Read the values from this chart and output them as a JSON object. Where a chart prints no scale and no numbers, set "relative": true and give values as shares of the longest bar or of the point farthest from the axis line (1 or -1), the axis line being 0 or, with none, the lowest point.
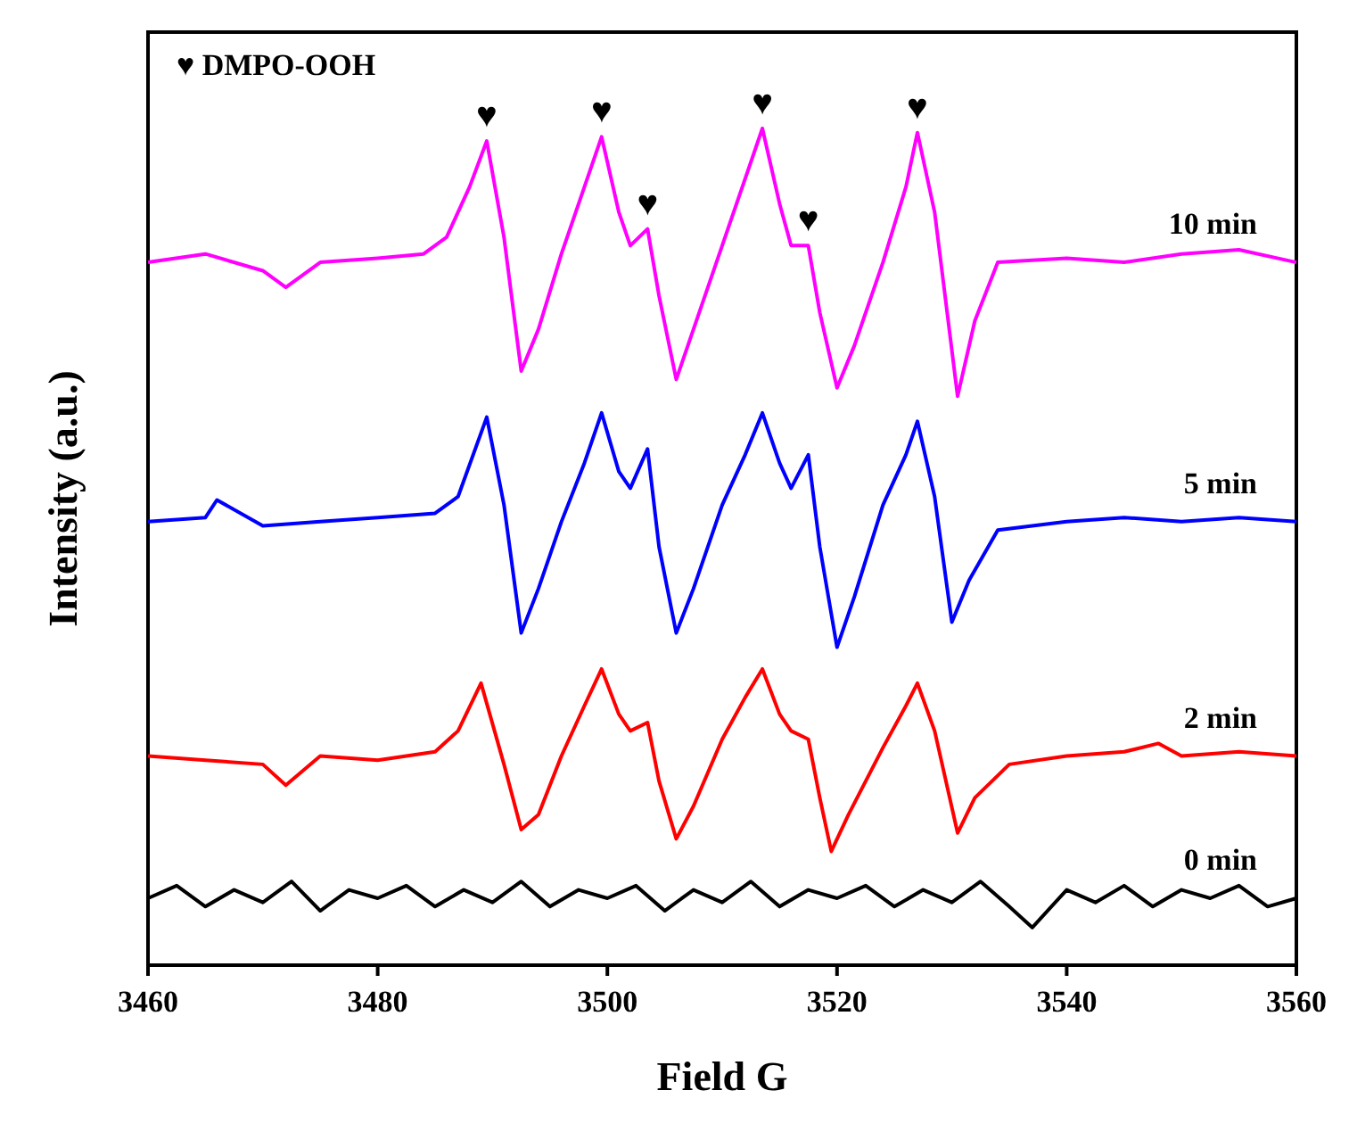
{
  "chart_data": {
    "type": "line",
    "xlabel": "Field G",
    "ylabel": "Intensity (a.u.)",
    "relative": true,
    "xlim": [
      3460,
      3560
    ],
    "xticks": [
      3460,
      3480,
      3500,
      3520,
      3540,
      3560
    ],
    "grid": false,
    "marker": "none",
    "line_style": "solid",
    "annotations": [
      "♥ DMPO-OOH",
      {
        "text": "♥",
        "x": 3489.5,
        "y": 0.985
      },
      {
        "text": "♥",
        "x": 3499.5,
        "y": 0.99
      },
      {
        "text": "♥",
        "x": 3503.5,
        "y": 0.88
      },
      {
        "text": "♥",
        "x": 3513.5,
        "y": 1.0
      },
      {
        "text": "♥",
        "x": 3517.5,
        "y": 0.86
      },
      {
        "text": "♥",
        "x": 3527,
        "y": 0.995
      }
    ],
    "series": [
      {
        "name": "10 min",
        "color": "#ff00ff",
        "x": [
          3460,
          3465,
          3470,
          3472,
          3475,
          3480,
          3484,
          3486,
          3488,
          3489.5,
          3491,
          3492.5,
          3494,
          3496,
          3498,
          3499.5,
          3501,
          3502,
          3503.5,
          3504.5,
          3506,
          3507.5,
          3510,
          3512,
          3513.5,
          3515,
          3516,
          3517.5,
          3518.5,
          3520,
          3521.5,
          3524,
          3526,
          3527,
          3528.5,
          3530.5,
          3532,
          3534,
          3540,
          3545,
          3550,
          3555,
          3560
        ],
        "values": [
          0.84,
          0.85,
          0.83,
          0.81,
          0.84,
          0.845,
          0.85,
          0.87,
          0.93,
          0.985,
          0.87,
          0.71,
          0.76,
          0.85,
          0.93,
          0.99,
          0.9,
          0.86,
          0.88,
          0.8,
          0.7,
          0.76,
          0.86,
          0.94,
          1.0,
          0.91,
          0.86,
          0.86,
          0.78,
          0.69,
          0.74,
          0.84,
          0.93,
          0.995,
          0.9,
          0.68,
          0.77,
          0.84,
          0.845,
          0.84,
          0.85,
          0.855,
          0.84
        ]
      },
      {
        "name": "5 min",
        "color": "#0000ff",
        "x": [
          3460,
          3465,
          3466,
          3470,
          3475,
          3480,
          3485,
          3487,
          3489.5,
          3491,
          3492.5,
          3494,
          3496,
          3498,
          3499.5,
          3501,
          3502,
          3503.5,
          3504.5,
          3506,
          3507.5,
          3510,
          3512,
          3513.5,
          3515,
          3516,
          3517.5,
          3518.5,
          3520,
          3521.5,
          3524,
          3526,
          3527,
          3528.5,
          3530,
          3531.5,
          3534,
          3540,
          3545,
          3550,
          3555,
          3560
        ],
        "values": [
          0.53,
          0.535,
          0.556,
          0.525,
          0.53,
          0.535,
          0.54,
          0.56,
          0.655,
          0.55,
          0.397,
          0.45,
          0.53,
          0.6,
          0.66,
          0.59,
          0.57,
          0.617,
          0.5,
          0.397,
          0.45,
          0.55,
          0.61,
          0.66,
          0.6,
          0.57,
          0.61,
          0.5,
          0.38,
          0.44,
          0.55,
          0.61,
          0.65,
          0.56,
          0.41,
          0.46,
          0.52,
          0.53,
          0.535,
          0.53,
          0.535,
          0.53
        ]
      },
      {
        "name": "2 min",
        "color": "#ff0000",
        "x": [
          3460,
          3465,
          3470,
          3472,
          3475,
          3480,
          3485,
          3487,
          3489,
          3491,
          3492.5,
          3494,
          3496,
          3498,
          3499.5,
          3501,
          3502,
          3503.5,
          3504.5,
          3506,
          3507.5,
          3510,
          3512,
          3513.5,
          3515,
          3516,
          3517.5,
          3518.5,
          3519.5,
          3521,
          3524,
          3526,
          3527,
          3528.5,
          3530.5,
          3532,
          3535,
          3540,
          3545,
          3548,
          3550,
          3555,
          3560
        ],
        "values": [
          0.25,
          0.245,
          0.24,
          0.215,
          0.25,
          0.245,
          0.255,
          0.28,
          0.337,
          0.24,
          0.162,
          0.18,
          0.25,
          0.31,
          0.354,
          0.3,
          0.28,
          0.29,
          0.22,
          0.151,
          0.19,
          0.27,
          0.32,
          0.354,
          0.3,
          0.28,
          0.27,
          0.2,
          0.136,
          0.18,
          0.26,
          0.31,
          0.337,
          0.28,
          0.158,
          0.2,
          0.24,
          0.25,
          0.255,
          0.265,
          0.25,
          0.255,
          0.25
        ]
      },
      {
        "name": "0 min",
        "color": "#000000",
        "x": [
          3460,
          3462.5,
          3465,
          3467.5,
          3470,
          3472.5,
          3475,
          3477.5,
          3480,
          3482.5,
          3485,
          3487.5,
          3490,
          3492.5,
          3495,
          3497.5,
          3500,
          3502.5,
          3505,
          3507.5,
          3510,
          3512.5,
          3515,
          3517.5,
          3520,
          3522.5,
          3525,
          3527.5,
          3530,
          3532.5,
          3535,
          3537,
          3540,
          3542.5,
          3545,
          3547.5,
          3550,
          3552.5,
          3555,
          3557.5,
          3560
        ],
        "values": [
          0.08,
          0.095,
          0.07,
          0.09,
          0.075,
          0.1,
          0.065,
          0.09,
          0.08,
          0.095,
          0.07,
          0.09,
          0.075,
          0.1,
          0.07,
          0.09,
          0.08,
          0.095,
          0.065,
          0.09,
          0.075,
          0.1,
          0.07,
          0.09,
          0.08,
          0.095,
          0.07,
          0.09,
          0.075,
          0.1,
          0.07,
          0.045,
          0.09,
          0.075,
          0.095,
          0.07,
          0.09,
          0.08,
          0.095,
          0.07,
          0.08
        ]
      }
    ]
  }
}
